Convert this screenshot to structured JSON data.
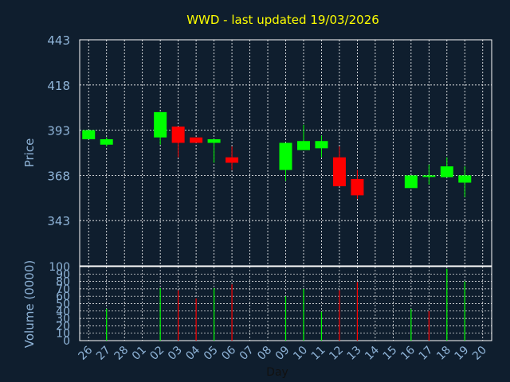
{
  "chart_data": {
    "type": "candlestick",
    "title": "WWD - last updated 19/03/2026",
    "ylabel": "Price",
    "vol_ylabel": "Volume (0000)",
    "xlabel": "Day",
    "ylim": [
      318,
      443
    ],
    "yticks": [
      343,
      368,
      393,
      418,
      443
    ],
    "vol_ylim": [
      0,
      100
    ],
    "vol_yticks": [
      0,
      10,
      20,
      30,
      40,
      50,
      60,
      70,
      80,
      90,
      100
    ],
    "grid": true,
    "colors": {
      "up": "#00ff00",
      "down": "#ff0000",
      "background": "#0f1e2e",
      "grid": "#ffffff",
      "title": "#ffff00",
      "text": "#8fb4d8"
    },
    "x": [
      "26",
      "27",
      "28",
      "01",
      "02",
      "03",
      "04",
      "05",
      "06",
      "07",
      "08",
      "09",
      "10",
      "11",
      "12",
      "13",
      "14",
      "15",
      "16",
      "17",
      "18",
      "19",
      "20"
    ],
    "candles": [
      {
        "day": "26",
        "open": 388,
        "high": 393,
        "low": 388,
        "close": 393
      },
      {
        "day": "27",
        "open": 385,
        "high": 389,
        "low": 384,
        "close": 388
      },
      {
        "day": "03",
        "open": 395,
        "high": 395,
        "low": 378,
        "close": 386
      },
      {
        "day": "02",
        "open": 389,
        "high": 403,
        "low": 385,
        "close": 403
      },
      {
        "day": "04",
        "open": 389,
        "high": 389,
        "low": 386,
        "close": 386
      },
      {
        "day": "05",
        "open": 386,
        "high": 388,
        "low": 375,
        "close": 388
      },
      {
        "day": "06",
        "open": 378,
        "high": 384,
        "low": 371,
        "close": 375
      },
      {
        "day": "09",
        "open": 371,
        "high": 386,
        "low": 365,
        "close": 386
      },
      {
        "day": "10",
        "open": 382,
        "high": 396,
        "low": 382,
        "close": 387
      },
      {
        "day": "11",
        "open": 383,
        "high": 390,
        "low": 378,
        "close": 387
      },
      {
        "day": "12",
        "open": 378,
        "high": 384,
        "low": 362,
        "close": 362
      },
      {
        "day": "13",
        "open": 366,
        "high": 371,
        "low": 355,
        "close": 357
      },
      {
        "day": "16",
        "open": 361,
        "high": 368,
        "low": 361,
        "close": 368
      },
      {
        "day": "17",
        "open": 368,
        "high": 374,
        "low": 363,
        "close": 368
      },
      {
        "day": "18",
        "open": 367,
        "high": 378,
        "low": 367,
        "close": 373
      },
      {
        "day": "19",
        "open": 364,
        "high": 373,
        "low": 356,
        "close": 368
      }
    ],
    "volume": [
      {
        "day": "27",
        "value": 43,
        "dir": "up"
      },
      {
        "day": "02",
        "value": 71,
        "dir": "up"
      },
      {
        "day": "03",
        "value": 68,
        "dir": "down"
      },
      {
        "day": "04",
        "value": 57,
        "dir": "down"
      },
      {
        "day": "05",
        "value": 71,
        "dir": "up"
      },
      {
        "day": "06",
        "value": 76,
        "dir": "down"
      },
      {
        "day": "09",
        "value": 60,
        "dir": "up"
      },
      {
        "day": "10",
        "value": 70,
        "dir": "up"
      },
      {
        "day": "11",
        "value": 39,
        "dir": "up"
      },
      {
        "day": "12",
        "value": 68,
        "dir": "down"
      },
      {
        "day": "13",
        "value": 79,
        "dir": "down"
      },
      {
        "day": "16",
        "value": 43,
        "dir": "up"
      },
      {
        "day": "17",
        "value": 40,
        "dir": "down"
      },
      {
        "day": "18",
        "value": 97,
        "dir": "up"
      },
      {
        "day": "19",
        "value": 80,
        "dir": "up"
      }
    ]
  }
}
